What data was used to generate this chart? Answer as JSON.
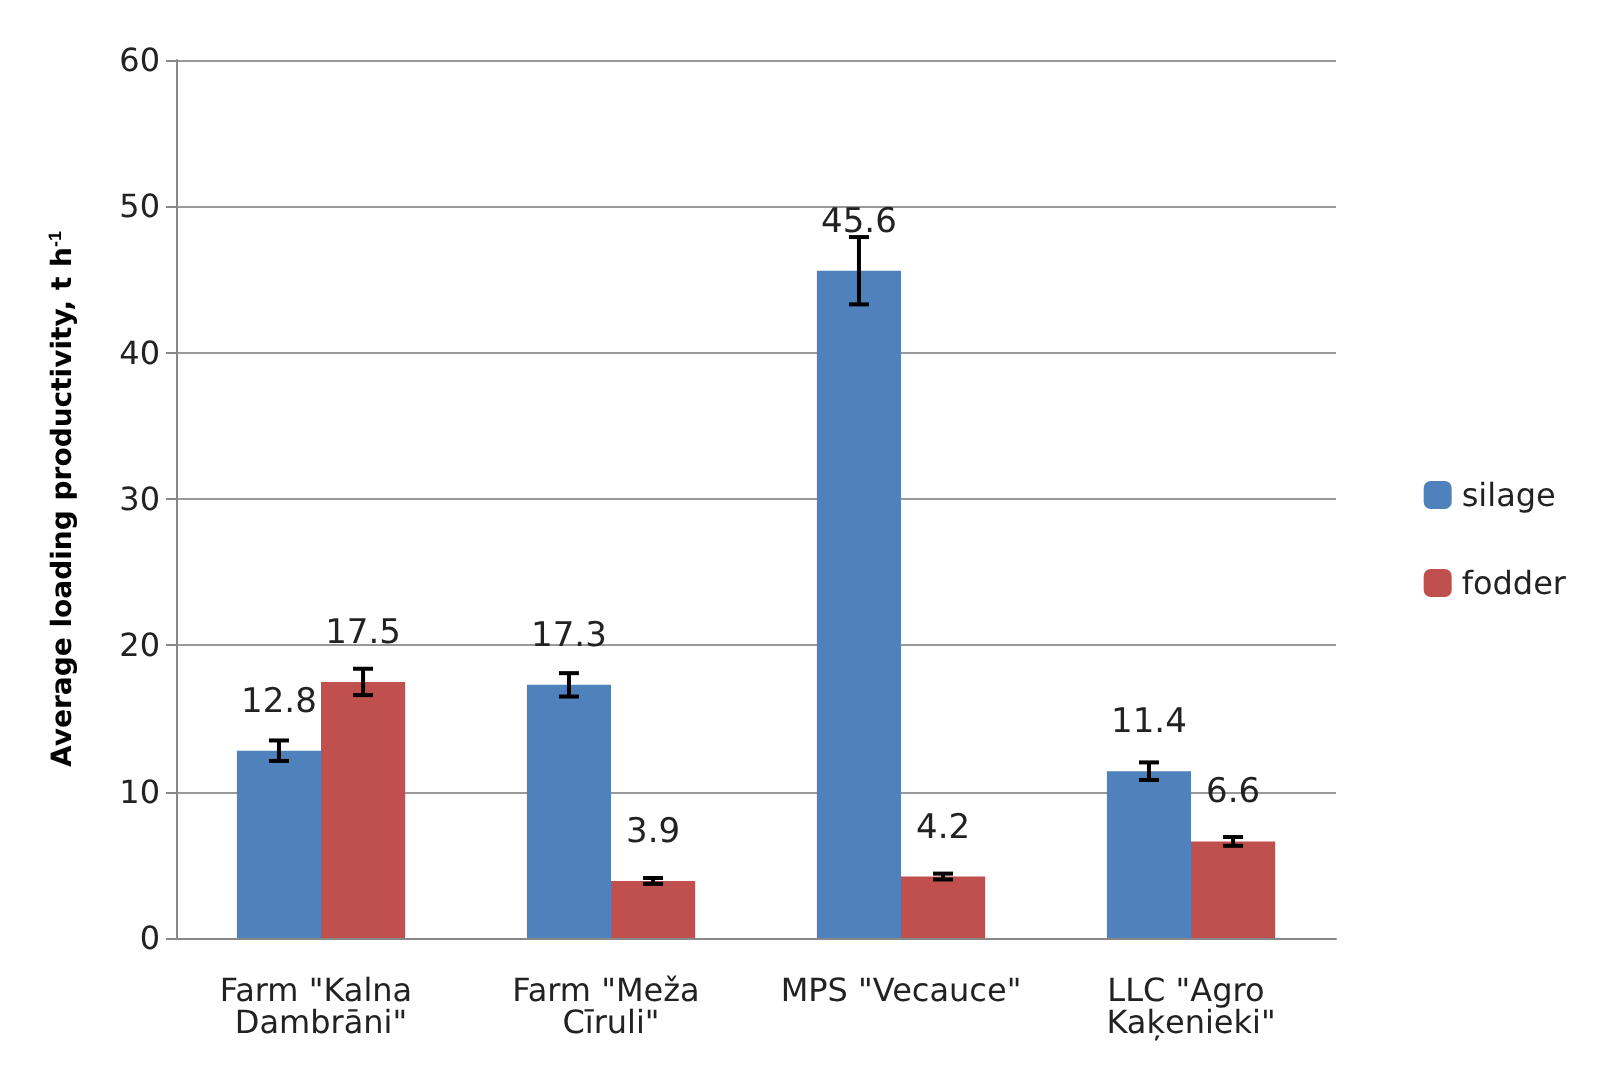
{
  "chart_data": {
    "type": "bar",
    "ylabel": "Average loading productivity, t h$^{-1}$",
    "categories": [
      "Farm \"Kalna Dambrāni\"",
      "Farm \"Meža Cīruli\"",
      "MPS \"Vecauce\"",
      "LLC \"Agro Kaķenieki\""
    ],
    "series": [
      {
        "name": "silage",
        "color": "#4f81bd",
        "values": [
          12.8,
          17.3,
          45.6,
          11.4
        ],
        "errors": [
          0.7,
          0.8,
          2.3,
          0.6
        ]
      },
      {
        "name": "fodder",
        "color": "#c0504d",
        "values": [
          17.5,
          3.9,
          4.2,
          6.6
        ],
        "errors": [
          0.9,
          0.2,
          0.2,
          0.3
        ]
      }
    ],
    "data_labels": true,
    "ylim": [
      0,
      60
    ],
    "yticks": [
      0,
      10,
      20,
      30,
      40,
      50,
      60
    ],
    "grid": "y",
    "legend": "right"
  }
}
